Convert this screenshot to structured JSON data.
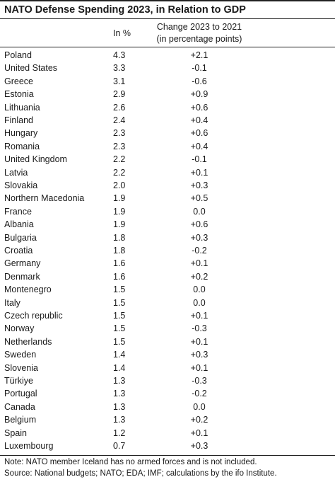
{
  "chart_data": {
    "type": "table",
    "title": "NATO Defense Spending 2023, in Relation to GDP",
    "columns": [
      "",
      "In %",
      "Change 2023 to 2021",
      "(in percentage points)"
    ],
    "rows": [
      {
        "country": "Poland",
        "in_percent": "4.3",
        "change": "+2.1"
      },
      {
        "country": "United States",
        "in_percent": "3.3",
        "change": "-0.1"
      },
      {
        "country": "Greece",
        "in_percent": "3.1",
        "change": "-0.6"
      },
      {
        "country": "Estonia",
        "in_percent": "2.9",
        "change": "+0.9"
      },
      {
        "country": "Lithuania",
        "in_percent": "2.6",
        "change": "+0.6"
      },
      {
        "country": "Finland",
        "in_percent": "2.4",
        "change": "+0.4"
      },
      {
        "country": "Hungary",
        "in_percent": "2.3",
        "change": "+0.6"
      },
      {
        "country": "Romania",
        "in_percent": "2.3",
        "change": "+0.4"
      },
      {
        "country": "United Kingdom",
        "in_percent": "2.2",
        "change": "-0.1"
      },
      {
        "country": "Latvia",
        "in_percent": "2.2",
        "change": "+0.1"
      },
      {
        "country": "Slovakia",
        "in_percent": "2.0",
        "change": "+0.3"
      },
      {
        "country": "Northern Macedonia",
        "in_percent": "1.9",
        "change": "+0.5"
      },
      {
        "country": "France",
        "in_percent": "1.9",
        "change": "0.0"
      },
      {
        "country": "Albania",
        "in_percent": "1.9",
        "change": "+0.6"
      },
      {
        "country": "Bulgaria",
        "in_percent": "1.8",
        "change": "+0.3"
      },
      {
        "country": "Croatia",
        "in_percent": "1.8",
        "change": "-0.2"
      },
      {
        "country": "Germany",
        "in_percent": "1.6",
        "change": "+0.1"
      },
      {
        "country": "Denmark",
        "in_percent": "1.6",
        "change": "+0.2"
      },
      {
        "country": "Montenegro",
        "in_percent": "1.5",
        "change": "0.0"
      },
      {
        "country": "Italy",
        "in_percent": "1.5",
        "change": "0.0"
      },
      {
        "country": "Czech republic",
        "in_percent": "1.5",
        "change": "+0.1"
      },
      {
        "country": "Norway",
        "in_percent": "1.5",
        "change": "-0.3"
      },
      {
        "country": "Netherlands",
        "in_percent": "1.5",
        "change": "+0.1"
      },
      {
        "country": "Sweden",
        "in_percent": "1.4",
        "change": "+0.3"
      },
      {
        "country": "Slovenia",
        "in_percent": "1.4",
        "change": "+0.1"
      },
      {
        "country": "Türkiye",
        "in_percent": "1.3",
        "change": "-0.3"
      },
      {
        "country": "Portugal",
        "in_percent": "1.3",
        "change": "-0.2"
      },
      {
        "country": "Canada",
        "in_percent": "1.3",
        "change": "0.0"
      },
      {
        "country": "Belgium",
        "in_percent": "1.3",
        "change": "+0.2"
      },
      {
        "country": "Spain",
        "in_percent": "1.2",
        "change": "+0.1"
      },
      {
        "country": "Luxembourg",
        "in_percent": "0.7",
        "change": "+0.3"
      }
    ],
    "notes": [
      "Note: NATO member Iceland has no armed forces and is not included.",
      "Source: National budgets; NATO; EDA; IMF; calculations by the ifo Institute."
    ]
  }
}
